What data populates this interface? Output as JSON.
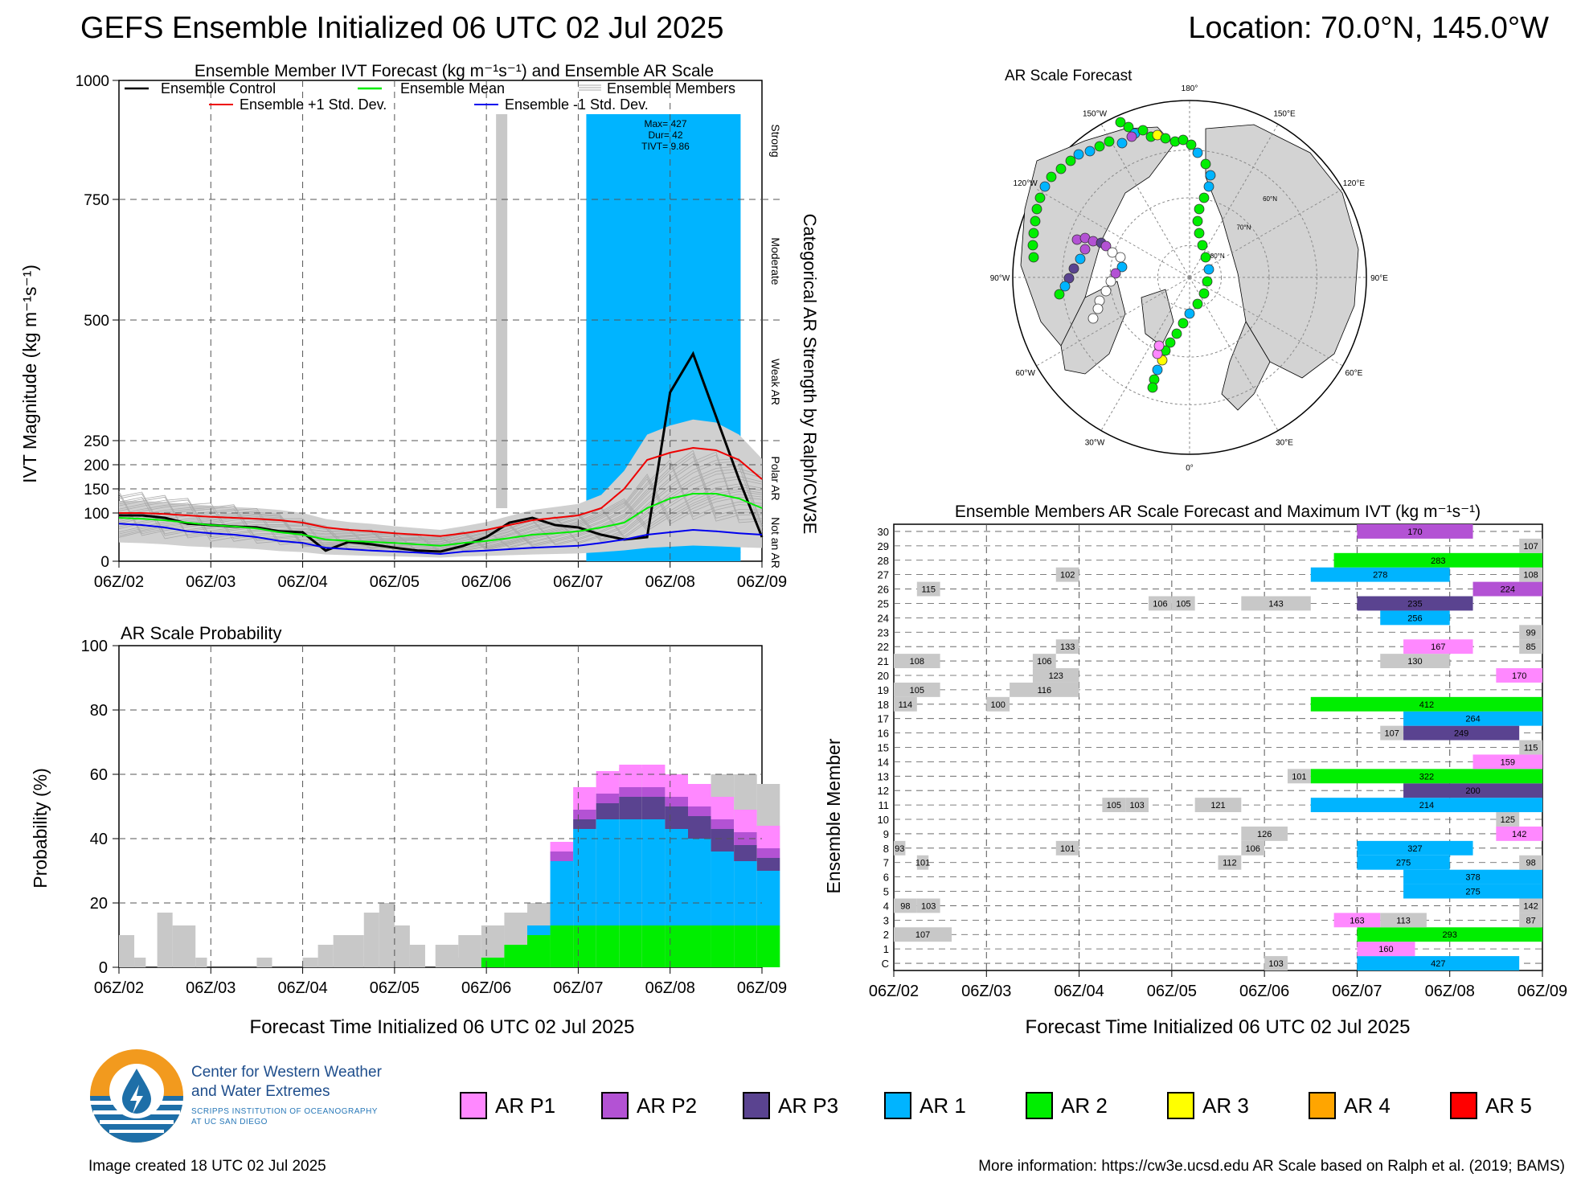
{
  "header": {
    "title": "GEFS Ensemble Initialized 06 UTC 02 Jul 2025",
    "location": "Location: 70.0°N, 145.0°W"
  },
  "colors": {
    "AR P1": "#ff88ff",
    "AR P2": "#b352d4",
    "AR P3": "#5a4390",
    "AR 1": "#00b4ff",
    "AR 2": "#00ee00",
    "AR 3": "#ffff00",
    "AR 4": "#ffa500",
    "AR 5": "#ff0000",
    "none": "#c8c8c8"
  },
  "time_ticks": [
    "06Z/02",
    "06Z/03",
    "06Z/04",
    "06Z/05",
    "06Z/06",
    "06Z/07",
    "06Z/08",
    "06Z/09"
  ],
  "x_label": "Forecast Time Initialized 06 UTC 02 Jul 2025",
  "ivt_panel": {
    "title": "Ensemble Member IVT Forecast (kg m⁻¹s⁻¹) and Ensemble AR Scale",
    "ylabel": "IVT Magnitude (kg m⁻¹s⁻¹)",
    "right_label": "Categorical AR Strength by Ralph/CW3E",
    "categories": [
      "Strong",
      "Moderate",
      "Weak AR",
      "Polar AR",
      "Not an AR"
    ],
    "legend": {
      "control": "Ensemble Control",
      "mean": "Ensemble Mean",
      "members": "Ensemble Members",
      "plus": "Ensemble +1 Std. Dev.",
      "minus": "Ensemble -1 Std. Dev."
    },
    "annotation": [
      "Max= 427",
      "Dur= 42",
      "TIVT= 9.86"
    ]
  },
  "prob_panel": {
    "title": "AR Scale Probability",
    "ylabel": "Probability (%)"
  },
  "map_panel": {
    "title": "AR Scale Forecast",
    "lon_labels": [
      "180°",
      "150°E",
      "120°E",
      "90°E",
      "60°E",
      "30°E",
      "0°",
      "30°W",
      "60°W",
      "90°W",
      "120°W",
      "150°W"
    ],
    "lat_labels": [
      "60°N",
      "70°N",
      "80°N"
    ]
  },
  "members_panel": {
    "title": "Ensemble Members AR Scale Forecast and Maximum IVT (kg m⁻¹s⁻¹)",
    "ylabel": "Ensemble Member",
    "rows": [
      "C",
      "1",
      "2",
      "3",
      "4",
      "5",
      "6",
      "7",
      "8",
      "9",
      "10",
      "11",
      "12",
      "13",
      "14",
      "15",
      "16",
      "17",
      "18",
      "19",
      "20",
      "21",
      "22",
      "23",
      "24",
      "25",
      "26",
      "27",
      "28",
      "29",
      "30"
    ]
  },
  "legend_items": [
    "AR P1",
    "AR P2",
    "AR P3",
    "AR 1",
    "AR 2",
    "AR 3",
    "AR 4",
    "AR 5"
  ],
  "org": {
    "name1": "Center for Western Weather",
    "name2": "and Water Extremes",
    "sub1": "SCRIPPS INSTITUTION OF OCEANOGRAPHY",
    "sub2": "AT UC SAN DIEGO"
  },
  "footer": {
    "created": "Image created 18 UTC 02 Jul 2025",
    "info": "More information: https://cw3e.ucsd.edu AR Scale based on Ralph et al. (2019; BAMS)"
  },
  "chart_data": [
    {
      "type": "line",
      "title": "Ensemble Member IVT Forecast (kg m⁻¹s⁻¹) and Ensemble AR Scale",
      "ylabel": "IVT Magnitude (kg m⁻¹s⁻¹)",
      "xlabel": "Forecast Time Initialized 06 UTC 02 Jul 2025",
      "x_hours": [
        0,
        6,
        12,
        18,
        24,
        30,
        36,
        42,
        48,
        54,
        60,
        66,
        72,
        78,
        84,
        90,
        96,
        102,
        108,
        114,
        120,
        126,
        132,
        138,
        144,
        150,
        156,
        162,
        168
      ],
      "ylim": [
        0,
        1000
      ],
      "y_ticks": [
        0,
        100,
        150,
        200,
        250,
        500,
        750,
        1000
      ],
      "series": [
        {
          "name": "Ensemble Control",
          "color": "#000000",
          "values": [
            95,
            95,
            90,
            78,
            75,
            72,
            70,
            62,
            60,
            22,
            40,
            35,
            28,
            22,
            20,
            32,
            50,
            80,
            90,
            75,
            70,
            55,
            45,
            50,
            350,
            430,
            300,
            170,
            50
          ]
        },
        {
          "name": "Ensemble Mean",
          "color": "#00ee00",
          "values": [
            90,
            88,
            85,
            80,
            75,
            72,
            68,
            60,
            55,
            45,
            42,
            40,
            38,
            35,
            32,
            38,
            42,
            48,
            55,
            58,
            62,
            70,
            80,
            110,
            130,
            140,
            140,
            130,
            110
          ]
        },
        {
          "name": "Ensemble +1 Std. Dev.",
          "color": "#ee0000",
          "values": [
            100,
            100,
            98,
            95,
            92,
            90,
            88,
            85,
            80,
            70,
            65,
            62,
            58,
            55,
            52,
            58,
            65,
            75,
            85,
            90,
            95,
            110,
            150,
            210,
            225,
            235,
            230,
            210,
            170
          ]
        },
        {
          "name": "Ensemble -1 Std. Dev.",
          "color": "#0000ee",
          "values": [
            78,
            75,
            70,
            62,
            58,
            55,
            50,
            42,
            38,
            28,
            25,
            22,
            20,
            18,
            15,
            20,
            22,
            25,
            28,
            30,
            32,
            38,
            45,
            55,
            60,
            65,
            62,
            58,
            55
          ]
        }
      ],
      "ensemble_ar_scale": {
        "start_hour": 120,
        "end_hour": 162,
        "category": "AR 1",
        "max": 427,
        "duration": 42,
        "tivt": 9.86
      }
    },
    {
      "type": "area",
      "title": "AR Scale Probability",
      "ylabel": "Probability (%)",
      "xlabel": "Forecast Time Initialized 06 UTC 02 Jul 2025",
      "ylim": [
        0,
        100
      ],
      "x_hours": [
        84,
        90,
        96,
        102,
        108,
        114,
        120,
        126,
        132,
        138,
        144,
        150,
        156,
        162,
        168
      ],
      "series": [
        {
          "name": "AR 2",
          "values": [
            0,
            0,
            3,
            7,
            10,
            13,
            13,
            13,
            13,
            13,
            13,
            13,
            13,
            13,
            13
          ]
        },
        {
          "name": "AR 1",
          "values": [
            0,
            0,
            0,
            0,
            3,
            20,
            30,
            33,
            33,
            33,
            30,
            27,
            23,
            20,
            17
          ]
        },
        {
          "name": "AR P3",
          "values": [
            0,
            0,
            0,
            0,
            0,
            0,
            3,
            5,
            7,
            7,
            7,
            7,
            7,
            5,
            4
          ]
        },
        {
          "name": "AR P2",
          "values": [
            0,
            0,
            0,
            0,
            0,
            3,
            3,
            3,
            3,
            3,
            3,
            3,
            3,
            4,
            3
          ]
        },
        {
          "name": "AR P1",
          "values": [
            0,
            0,
            0,
            0,
            0,
            3,
            7,
            7,
            7,
            7,
            7,
            7,
            7,
            7,
            7
          ]
        }
      ],
      "total_gray": [
        7,
        10,
        13,
        17,
        20,
        23,
        37,
        60,
        62,
        60,
        58,
        57,
        60,
        60,
        57
      ]
    },
    {
      "type": "table",
      "title": "Ensemble Members AR Scale Forecast and Maximum IVT (kg m⁻¹s⁻¹)",
      "ylabel": "Ensemble Member",
      "xlabel": "Forecast Time Initialized 06 UTC 02 Jul 2025",
      "segments": [
        {
          "row": "C",
          "start": 96,
          "end": 102,
          "cat": "none",
          "label": "103"
        },
        {
          "row": "C",
          "start": 120,
          "end": 162,
          "cat": "AR 1",
          "label": "427"
        },
        {
          "row": "1",
          "start": 120,
          "end": 135,
          "cat": "AR P1",
          "label": "160"
        },
        {
          "row": "2",
          "start": 0,
          "end": 15,
          "cat": "none",
          "label": "107"
        },
        {
          "row": "2",
          "start": 120,
          "end": 168,
          "cat": "AR 2",
          "label": "293"
        },
        {
          "row": "3",
          "start": 114,
          "end": 126,
          "cat": "AR P1",
          "label": "163"
        },
        {
          "row": "3",
          "start": 126,
          "end": 138,
          "cat": "none",
          "label": "113"
        },
        {
          "row": "3",
          "start": 162,
          "end": 168,
          "cat": "none",
          "label": "87"
        },
        {
          "row": "4",
          "start": 0,
          "end": 6,
          "cat": "none",
          "label": "98"
        },
        {
          "row": "4",
          "start": 6,
          "end": 12,
          "cat": "none",
          "label": "103"
        },
        {
          "row": "4",
          "start": 162,
          "end": 168,
          "cat": "none",
          "label": "142"
        },
        {
          "row": "5",
          "start": 132,
          "end": 168,
          "cat": "AR 1",
          "label": "275"
        },
        {
          "row": "6",
          "start": 132,
          "end": 168,
          "cat": "AR 1",
          "label": "378"
        },
        {
          "row": "7",
          "start": 6,
          "end": 9,
          "cat": "none",
          "label": "101"
        },
        {
          "row": "7",
          "start": 84,
          "end": 90,
          "cat": "none",
          "label": "112"
        },
        {
          "row": "7",
          "start": 120,
          "end": 144,
          "cat": "AR 1",
          "label": "275"
        },
        {
          "row": "7",
          "start": 162,
          "end": 168,
          "cat": "none",
          "label": "98"
        },
        {
          "row": "8",
          "start": 0,
          "end": 3,
          "cat": "none",
          "label": "93"
        },
        {
          "row": "8",
          "start": 42,
          "end": 48,
          "cat": "none",
          "label": "101"
        },
        {
          "row": "8",
          "start": 90,
          "end": 96,
          "cat": "none",
          "label": "106"
        },
        {
          "row": "8",
          "start": 120,
          "end": 150,
          "cat": "AR 1",
          "label": "327"
        },
        {
          "row": "9",
          "start": 90,
          "end": 102,
          "cat": "none",
          "label": "126"
        },
        {
          "row": "9",
          "start": 156,
          "end": 168,
          "cat": "AR P1",
          "label": "142"
        },
        {
          "row": "10",
          "start": 156,
          "end": 162,
          "cat": "none",
          "label": "125"
        },
        {
          "row": "11",
          "start": 54,
          "end": 60,
          "cat": "none",
          "label": "105"
        },
        {
          "row": "11",
          "start": 60,
          "end": 66,
          "cat": "none",
          "label": "103"
        },
        {
          "row": "11",
          "start": 78,
          "end": 90,
          "cat": "none",
          "label": "121"
        },
        {
          "row": "11",
          "start": 108,
          "end": 168,
          "cat": "AR 1",
          "label": "214"
        },
        {
          "row": "12",
          "start": 132,
          "end": 168,
          "cat": "AR P3",
          "label": "200"
        },
        {
          "row": "13",
          "start": 102,
          "end": 108,
          "cat": "none",
          "label": "101"
        },
        {
          "row": "13",
          "start": 108,
          "end": 168,
          "cat": "AR 2",
          "label": "322"
        },
        {
          "row": "14",
          "start": 150,
          "end": 168,
          "cat": "AR P1",
          "label": "159"
        },
        {
          "row": "15",
          "start": 162,
          "end": 168,
          "cat": "none",
          "label": "115"
        },
        {
          "row": "16",
          "start": 126,
          "end": 132,
          "cat": "none",
          "label": "107"
        },
        {
          "row": "16",
          "start": 132,
          "end": 162,
          "cat": "AR P3",
          "label": "249"
        },
        {
          "row": "17",
          "start": 132,
          "end": 168,
          "cat": "AR 1",
          "label": "264"
        },
        {
          "row": "18",
          "start": 0,
          "end": 6,
          "cat": "none",
          "label": "114"
        },
        {
          "row": "18",
          "start": 24,
          "end": 30,
          "cat": "none",
          "label": "100"
        },
        {
          "row": "18",
          "start": 108,
          "end": 168,
          "cat": "AR 2",
          "label": "412"
        },
        {
          "row": "19",
          "start": 0,
          "end": 12,
          "cat": "none",
          "label": "105"
        },
        {
          "row": "19",
          "start": 30,
          "end": 48,
          "cat": "none",
          "label": "116"
        },
        {
          "row": "20",
          "start": 36,
          "end": 48,
          "cat": "none",
          "label": "123"
        },
        {
          "row": "20",
          "start": 156,
          "end": 168,
          "cat": "AR P1",
          "label": "170"
        },
        {
          "row": "21",
          "start": 0,
          "end": 12,
          "cat": "none",
          "label": "108"
        },
        {
          "row": "21",
          "start": 36,
          "end": 42,
          "cat": "none",
          "label": "106"
        },
        {
          "row": "21",
          "start": 126,
          "end": 144,
          "cat": "none",
          "label": "130"
        },
        {
          "row": "22",
          "start": 42,
          "end": 48,
          "cat": "none",
          "label": "133"
        },
        {
          "row": "22",
          "start": 132,
          "end": 150,
          "cat": "AR P1",
          "label": "167"
        },
        {
          "row": "22",
          "start": 162,
          "end": 168,
          "cat": "none",
          "label": "85"
        },
        {
          "row": "23",
          "start": 162,
          "end": 168,
          "cat": "none",
          "label": "99"
        },
        {
          "row": "24",
          "start": 126,
          "end": 144,
          "cat": "AR 1",
          "label": "256"
        },
        {
          "row": "25",
          "start": 66,
          "end": 72,
          "cat": "none",
          "label": "106"
        },
        {
          "row": "25",
          "start": 72,
          "end": 78,
          "cat": "none",
          "label": "105"
        },
        {
          "row": "25",
          "start": 90,
          "end": 108,
          "cat": "none",
          "label": "143"
        },
        {
          "row": "25",
          "start": 120,
          "end": 150,
          "cat": "AR P3",
          "label": "235"
        },
        {
          "row": "26",
          "start": 6,
          "end": 12,
          "cat": "none",
          "label": "115"
        },
        {
          "row": "26",
          "start": 150,
          "end": 168,
          "cat": "AR P2",
          "label": "224"
        },
        {
          "row": "27",
          "start": 42,
          "end": 48,
          "cat": "none",
          "label": "102"
        },
        {
          "row": "27",
          "start": 108,
          "end": 144,
          "cat": "AR 1",
          "label": "278"
        },
        {
          "row": "27",
          "start": 162,
          "end": 168,
          "cat": "none",
          "label": "108"
        },
        {
          "row": "28",
          "start": 114,
          "end": 168,
          "cat": "AR 2",
          "label": "283"
        },
        {
          "row": "29",
          "start": 162,
          "end": 168,
          "cat": "none",
          "label": "107"
        },
        {
          "row": "30",
          "start": 120,
          "end": 150,
          "cat": "AR P2",
          "label": "170"
        }
      ]
    }
  ]
}
